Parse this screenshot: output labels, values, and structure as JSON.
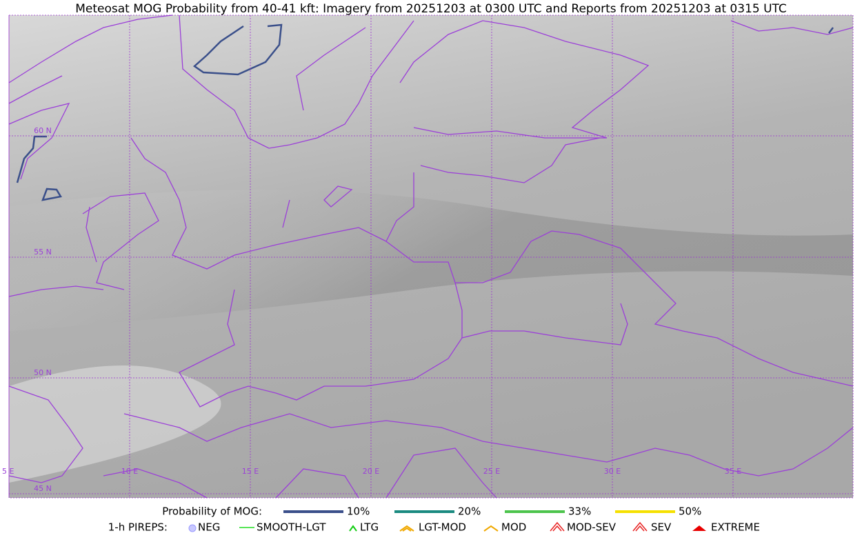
{
  "title": "Meteosat MOG Probability from 40-41 kft: Imagery from 20251203 at 0300 UTC and Reports from 20251203 at 0315 UTC",
  "map": {
    "lat_labels": [
      "60 N",
      "55 N",
      "50 N",
      "45 N"
    ],
    "lon_labels": [
      "5 E",
      "10 E",
      "15 E",
      "20 E",
      "25 E",
      "30 E",
      "35 E"
    ]
  },
  "legend": {
    "probability": {
      "label": "Probability of MOG:",
      "items": [
        "10%",
        "20%",
        "33%",
        "50%"
      ]
    },
    "pireps": {
      "label": "1-h PIREPS:",
      "items": [
        "NEG",
        "SMOOTH-LGT",
        "LTG",
        "LGT-MOD",
        "MOD",
        "MOD-SEV",
        "SEV",
        "EXTREME"
      ]
    }
  }
}
